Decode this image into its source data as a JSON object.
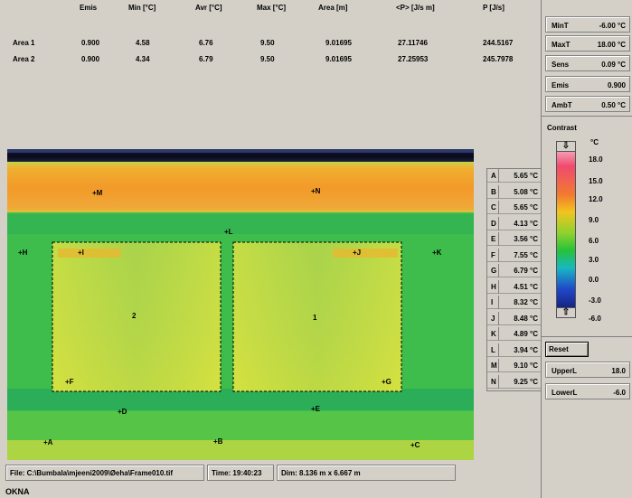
{
  "stats_table": {
    "headers": [
      "Emis",
      "Min [°C]",
      "Avr [°C]",
      "Max [°C]",
      "Area  [m]",
      "<P> [J/s m]",
      "P [J/s]"
    ],
    "rows": [
      {
        "label": "Area 1",
        "values": [
          "0.900",
          "4.58",
          "6.76",
          "9.50",
          "9.01695",
          "27.11746",
          "244.5167"
        ]
      },
      {
        "label": "Area 2",
        "values": [
          "0.900",
          "4.34",
          "6.79",
          "9.50",
          "9.01695",
          "27.25953",
          "245.7978"
        ]
      }
    ]
  },
  "markers": [
    {
      "id": "M"
    },
    {
      "id": "N"
    },
    {
      "id": "L"
    },
    {
      "id": "H"
    },
    {
      "id": "I"
    },
    {
      "id": "J"
    },
    {
      "id": "K"
    },
    {
      "id": "F"
    },
    {
      "id": "G"
    },
    {
      "id": "D"
    },
    {
      "id": "E"
    },
    {
      "id": "A"
    },
    {
      "id": "B"
    },
    {
      "id": "C"
    }
  ],
  "area_labels": [
    "2",
    "1"
  ],
  "points": [
    {
      "letter": "A",
      "value": "5.65 °C"
    },
    {
      "letter": "B",
      "value": "5.08 °C"
    },
    {
      "letter": "C",
      "value": "5.65 °C"
    },
    {
      "letter": "D",
      "value": "4.13 °C"
    },
    {
      "letter": "E",
      "value": "3.56 °C"
    },
    {
      "letter": "F",
      "value": "7.55 °C"
    },
    {
      "letter": "G",
      "value": "6.79 °C"
    },
    {
      "letter": "H",
      "value": "4.51 °C"
    },
    {
      "letter": "I",
      "value": "8.32 °C"
    },
    {
      "letter": "J",
      "value": "8.48 °C"
    },
    {
      "letter": "K",
      "value": "4.89 °C"
    },
    {
      "letter": "L",
      "value": "3.94 °C"
    },
    {
      "letter": "M",
      "value": "9.10 °C"
    },
    {
      "letter": "N",
      "value": "9.25 °C"
    }
  ],
  "right_panel": {
    "fields": [
      {
        "label": "MinT",
        "value": "-6.00 °C"
      },
      {
        "label": "MaxT",
        "value": "18.00 °C"
      },
      {
        "label": "Sens",
        "value": "0.09 °C"
      },
      {
        "label": "Emis",
        "value": "0.900"
      },
      {
        "label": "AmbT",
        "value": "0.50 °C"
      }
    ],
    "contrast_label": "Contrast",
    "unit": "°C",
    "scale_labels": [
      "18.0",
      "15.0",
      "12.0",
      "9.0",
      "6.0",
      "3.0",
      "0.0",
      "-3.0",
      "-6.0"
    ],
    "up_arrow": "⇩",
    "down_arrow": "⇧",
    "reset_label": "Reset",
    "upper": {
      "label": "UpperL",
      "value": "18.0"
    },
    "lower": {
      "label": "LowerL",
      "value": "-6.0"
    }
  },
  "status": {
    "file": "File: C:\\Bumbala\\mjeeni2009\\Øeha\\Frame010.tif",
    "time": "Time: 19:40:23",
    "dim": "Dim: 8.136 m x 6.667 m",
    "caption": "OKNA"
  },
  "colors": {
    "panel_bg": "#d4d0c8",
    "hot_band": "#f29a2a",
    "wall_green": "#3fbd4c",
    "window_yellow": "#d8e03a"
  }
}
